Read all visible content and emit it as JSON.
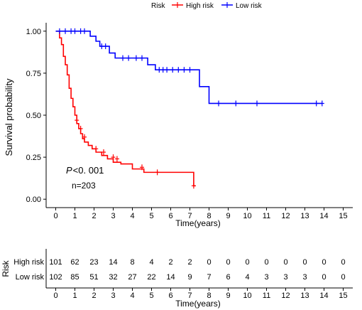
{
  "chart_data": [
    {
      "type": "line",
      "subtype": "kaplan-meier",
      "ylabel": "Survival probability",
      "xlabel": "Time(years)",
      "xlim": [
        -0.5,
        15.5
      ],
      "ylim": [
        -0.05,
        1.05
      ],
      "xticks": [
        "0",
        "1",
        "2",
        "3",
        "4",
        "5",
        "6",
        "7",
        "8",
        "9",
        "10",
        "11",
        "12",
        "13",
        "14",
        "15"
      ],
      "yticks": [
        "0.00",
        "0.25",
        "0.50",
        "0.75",
        "1.00"
      ],
      "legend": {
        "title": "Risk",
        "placement": "top",
        "entries": [
          "High risk",
          "Low risk"
        ]
      },
      "annotations": {
        "p_italic": "P",
        "p_value": "<0. 001",
        "n": "n=203"
      },
      "grid": false,
      "series": [
        {
          "name": "High risk",
          "color": "#ff0000",
          "steps": [
            [
              0,
              1.0
            ],
            [
              0.2,
              0.96
            ],
            [
              0.3,
              0.92
            ],
            [
              0.4,
              0.85
            ],
            [
              0.5,
              0.8
            ],
            [
              0.6,
              0.74
            ],
            [
              0.7,
              0.66
            ],
            [
              0.8,
              0.6
            ],
            [
              0.9,
              0.55
            ],
            [
              1.0,
              0.5
            ],
            [
              1.1,
              0.45
            ],
            [
              1.2,
              0.42
            ],
            [
              1.3,
              0.39
            ],
            [
              1.4,
              0.36
            ],
            [
              1.5,
              0.34
            ],
            [
              1.7,
              0.32
            ],
            [
              1.9,
              0.3
            ],
            [
              2.1,
              0.28
            ],
            [
              2.4,
              0.26
            ],
            [
              2.7,
              0.24
            ],
            [
              3.0,
              0.22
            ],
            [
              3.4,
              0.21
            ],
            [
              4.0,
              0.18
            ],
            [
              4.6,
              0.16
            ],
            [
              7.0,
              0.16
            ],
            [
              7.2,
              0.08
            ]
          ],
          "end": 7.3,
          "censored": [
            [
              1.1,
              0.47
            ],
            [
              1.3,
              0.42
            ],
            [
              1.5,
              0.37
            ],
            [
              2.1,
              0.3
            ],
            [
              2.5,
              0.28
            ],
            [
              3.0,
              0.25
            ],
            [
              3.2,
              0.24
            ],
            [
              4.5,
              0.19
            ],
            [
              5.3,
              0.16
            ],
            [
              7.2,
              0.08
            ]
          ]
        },
        {
          "name": "Low risk",
          "color": "#0000ff",
          "steps": [
            [
              0,
              1.0
            ],
            [
              1.8,
              0.97
            ],
            [
              2.1,
              0.94
            ],
            [
              2.3,
              0.91
            ],
            [
              2.8,
              0.87
            ],
            [
              3.1,
              0.84
            ],
            [
              4.8,
              0.8
            ],
            [
              5.2,
              0.77
            ],
            [
              7.5,
              0.67
            ],
            [
              8.0,
              0.57
            ]
          ],
          "end": 13.9,
          "censored": [
            [
              0.2,
              1.0
            ],
            [
              0.5,
              1.0
            ],
            [
              0.8,
              1.0
            ],
            [
              1.0,
              1.0
            ],
            [
              1.3,
              1.0
            ],
            [
              1.5,
              1.0
            ],
            [
              2.4,
              0.91
            ],
            [
              2.6,
              0.91
            ],
            [
              3.5,
              0.84
            ],
            [
              3.8,
              0.84
            ],
            [
              4.2,
              0.84
            ],
            [
              4.5,
              0.84
            ],
            [
              5.4,
              0.77
            ],
            [
              5.6,
              0.77
            ],
            [
              5.8,
              0.77
            ],
            [
              6.1,
              0.77
            ],
            [
              6.4,
              0.77
            ],
            [
              6.7,
              0.77
            ],
            [
              7.0,
              0.77
            ],
            [
              8.5,
              0.57
            ],
            [
              9.4,
              0.57
            ],
            [
              10.5,
              0.57
            ],
            [
              13.6,
              0.57
            ],
            [
              13.9,
              0.57
            ]
          ]
        }
      ]
    },
    {
      "type": "table",
      "title": "Risk",
      "xlabel": "Time(years)",
      "xticks": [
        "0",
        "1",
        "2",
        "3",
        "4",
        "5",
        "6",
        "7",
        "8",
        "9",
        "10",
        "11",
        "12",
        "13",
        "14",
        "15"
      ],
      "rows": [
        {
          "label": "High risk",
          "color": "#ff0000",
          "values": [
            "101",
            "62",
            "23",
            "14",
            "8",
            "4",
            "2",
            "2",
            "0",
            "0",
            "0",
            "0",
            "0",
            "0",
            "0",
            "0"
          ]
        },
        {
          "label": "Low risk",
          "color": "#0000ff",
          "values": [
            "102",
            "85",
            "51",
            "32",
            "27",
            "22",
            "14",
            "9",
            "7",
            "6",
            "4",
            "3",
            "3",
            "3",
            "0",
            "0"
          ]
        }
      ]
    }
  ]
}
